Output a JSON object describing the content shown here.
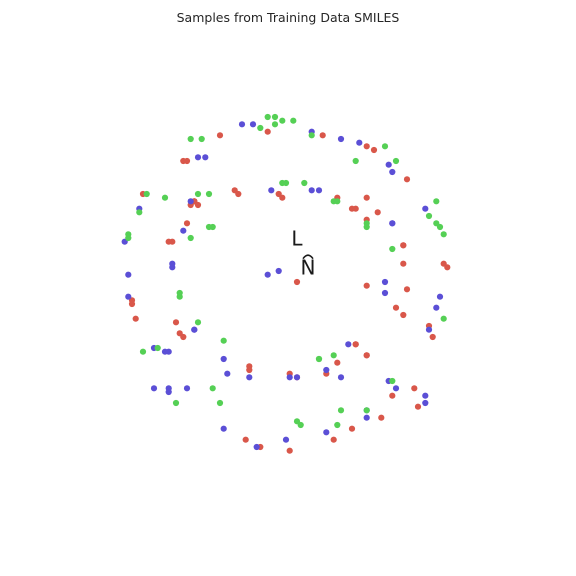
{
  "chart_data": {
    "type": "scatter",
    "title": "Samples from Training Data SMILES",
    "xlabel": "",
    "ylabel": "",
    "grid": false,
    "axes_visible": false,
    "xlim": [
      -0.1,
      1.1
    ],
    "ylim": [
      -0.1,
      1.1
    ],
    "annotations": [
      {
        "text": "L",
        "x": 0.5,
        "y": 0.6
      },
      {
        "text": "N",
        "x": 0.53,
        "y": 0.52
      }
    ],
    "series": [
      {
        "color": "#d9574a",
        "points": [
          [
            0.5,
            0.5
          ],
          [
            0.29,
            0.9
          ],
          [
            0.42,
            0.91
          ],
          [
            0.57,
            0.9
          ],
          [
            0.69,
            0.87
          ],
          [
            0.71,
            0.86
          ],
          [
            0.8,
            0.78
          ],
          [
            0.08,
            0.74
          ],
          [
            0.82,
            0.21
          ],
          [
            0.9,
            0.55
          ],
          [
            0.91,
            0.54
          ],
          [
            0.05,
            0.45
          ],
          [
            0.05,
            0.44
          ],
          [
            0.06,
            0.4
          ],
          [
            0.87,
            0.35
          ],
          [
            0.86,
            0.38
          ],
          [
            0.83,
            0.16
          ],
          [
            0.36,
            0.07
          ],
          [
            0.4,
            0.05
          ],
          [
            0.48,
            0.04
          ],
          [
            0.6,
            0.07
          ],
          [
            0.65,
            0.1
          ],
          [
            0.73,
            0.13
          ],
          [
            0.19,
            0.83
          ],
          [
            0.2,
            0.83
          ],
          [
            0.2,
            0.66
          ],
          [
            0.15,
            0.61
          ],
          [
            0.69,
            0.73
          ],
          [
            0.72,
            0.69
          ],
          [
            0.79,
            0.6
          ],
          [
            0.79,
            0.6
          ],
          [
            0.79,
            0.55
          ],
          [
            0.69,
            0.49
          ],
          [
            0.22,
            0.72
          ],
          [
            0.22,
            0.72
          ],
          [
            0.33,
            0.75
          ],
          [
            0.34,
            0.74
          ],
          [
            0.45,
            0.74
          ],
          [
            0.46,
            0.73
          ],
          [
            0.61,
            0.73
          ],
          [
            0.65,
            0.7
          ],
          [
            0.66,
            0.7
          ],
          [
            0.69,
            0.67
          ],
          [
            0.8,
            0.48
          ],
          [
            0.18,
            0.36
          ],
          [
            0.17,
            0.39
          ],
          [
            0.16,
            0.61
          ],
          [
            0.19,
            0.35
          ],
          [
            0.66,
            0.33
          ],
          [
            0.66,
            0.33
          ],
          [
            0.79,
            0.41
          ],
          [
            0.77,
            0.43
          ],
          [
            0.22,
            0.72
          ],
          [
            0.21,
            0.71
          ],
          [
            0.23,
            0.71
          ],
          [
            0.37,
            0.27
          ],
          [
            0.37,
            0.26
          ],
          [
            0.48,
            0.25
          ],
          [
            0.5,
            0.24
          ],
          [
            0.58,
            0.25
          ],
          [
            0.61,
            0.28
          ],
          [
            0.69,
            0.3
          ],
          [
            0.69,
            0.3
          ],
          [
            0.76,
            0.19
          ]
        ]
      },
      {
        "color": "#5b4fd6",
        "points": [
          [
            0.42,
            0.52
          ],
          [
            0.45,
            0.53
          ],
          [
            0.35,
            0.93
          ],
          [
            0.38,
            0.93
          ],
          [
            0.54,
            0.91
          ],
          [
            0.62,
            0.89
          ],
          [
            0.67,
            0.88
          ],
          [
            0.23,
            0.84
          ],
          [
            0.25,
            0.84
          ],
          [
            0.75,
            0.82
          ],
          [
            0.76,
            0.8
          ],
          [
            0.85,
            0.7
          ],
          [
            0.07,
            0.7
          ],
          [
            0.03,
            0.61
          ],
          [
            0.04,
            0.52
          ],
          [
            0.04,
            0.46
          ],
          [
            0.89,
            0.46
          ],
          [
            0.88,
            0.43
          ],
          [
            0.86,
            0.37
          ],
          [
            0.11,
            0.32
          ],
          [
            0.14,
            0.31
          ],
          [
            0.15,
            0.31
          ],
          [
            0.85,
            0.17
          ],
          [
            0.85,
            0.19
          ],
          [
            0.77,
            0.21
          ],
          [
            0.11,
            0.21
          ],
          [
            0.15,
            0.2
          ],
          [
            0.15,
            0.21
          ],
          [
            0.2,
            0.21
          ],
          [
            0.3,
            0.1
          ],
          [
            0.39,
            0.05
          ],
          [
            0.47,
            0.07
          ],
          [
            0.58,
            0.09
          ],
          [
            0.69,
            0.13
          ],
          [
            0.69,
            0.15
          ],
          [
            0.75,
            0.23
          ],
          [
            0.64,
            0.33
          ],
          [
            0.62,
            0.24
          ],
          [
            0.58,
            0.26
          ],
          [
            0.5,
            0.24
          ],
          [
            0.48,
            0.24
          ],
          [
            0.37,
            0.24
          ],
          [
            0.31,
            0.25
          ],
          [
            0.3,
            0.29
          ],
          [
            0.22,
            0.37
          ],
          [
            0.22,
            0.37
          ],
          [
            0.16,
            0.54
          ],
          [
            0.16,
            0.55
          ],
          [
            0.19,
            0.64
          ],
          [
            0.43,
            0.75
          ],
          [
            0.54,
            0.75
          ],
          [
            0.56,
            0.75
          ],
          [
            0.76,
            0.66
          ],
          [
            0.76,
            0.66
          ],
          [
            0.74,
            0.5
          ],
          [
            0.74,
            0.47
          ],
          [
            0.21,
            0.72
          ]
        ]
      },
      {
        "color": "#55d055",
        "points": [
          [
            0.4,
            0.92
          ],
          [
            0.44,
            0.93
          ],
          [
            0.46,
            0.94
          ],
          [
            0.42,
            0.95
          ],
          [
            0.44,
            0.95
          ],
          [
            0.49,
            0.94
          ],
          [
            0.54,
            0.9
          ],
          [
            0.21,
            0.89
          ],
          [
            0.24,
            0.89
          ],
          [
            0.74,
            0.87
          ],
          [
            0.77,
            0.83
          ],
          [
            0.66,
            0.83
          ],
          [
            0.14,
            0.73
          ],
          [
            0.07,
            0.69
          ],
          [
            0.09,
            0.74
          ],
          [
            0.88,
            0.72
          ],
          [
            0.86,
            0.68
          ],
          [
            0.88,
            0.66
          ],
          [
            0.89,
            0.65
          ],
          [
            0.9,
            0.63
          ],
          [
            0.04,
            0.63
          ],
          [
            0.04,
            0.62
          ],
          [
            0.9,
            0.4
          ],
          [
            0.08,
            0.31
          ],
          [
            0.12,
            0.32
          ],
          [
            0.17,
            0.17
          ],
          [
            0.76,
            0.23
          ],
          [
            0.27,
            0.21
          ],
          [
            0.29,
            0.17
          ],
          [
            0.5,
            0.12
          ],
          [
            0.51,
            0.11
          ],
          [
            0.61,
            0.11
          ],
          [
            0.62,
            0.15
          ],
          [
            0.69,
            0.15
          ],
          [
            0.52,
            0.77
          ],
          [
            0.46,
            0.77
          ],
          [
            0.47,
            0.77
          ],
          [
            0.6,
            0.72
          ],
          [
            0.61,
            0.72
          ],
          [
            0.69,
            0.65
          ],
          [
            0.69,
            0.66
          ],
          [
            0.76,
            0.59
          ],
          [
            0.27,
            0.65
          ],
          [
            0.26,
            0.65
          ],
          [
            0.21,
            0.62
          ],
          [
            0.18,
            0.46
          ],
          [
            0.18,
            0.47
          ],
          [
            0.23,
            0.39
          ],
          [
            0.3,
            0.34
          ],
          [
            0.56,
            0.29
          ],
          [
            0.56,
            0.29
          ],
          [
            0.6,
            0.3
          ],
          [
            0.26,
            0.74
          ],
          [
            0.23,
            0.74
          ]
        ]
      }
    ]
  }
}
